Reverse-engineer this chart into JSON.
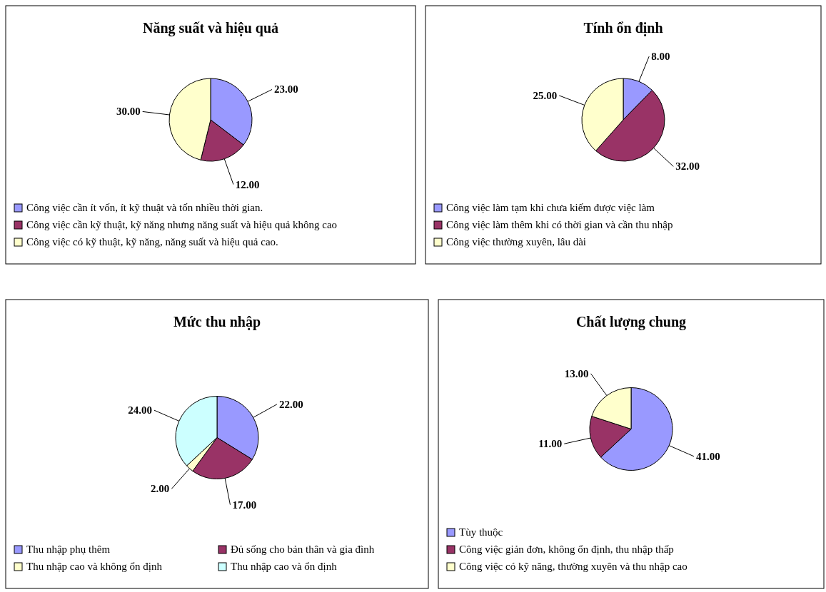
{
  "chart_data": [
    {
      "type": "pie",
      "title": "Năng suất và hiệu quả",
      "categories": [
        "Công việc cần ít vốn, ít kỹ thuật và tốn nhiều thời gian.",
        "Công việc cần kỹ thuật, kỹ năng nhưng năng suất và hiệu quả không cao",
        "Công việc có kỹ thuật, kỹ năng, năng suất và hiệu quả cao."
      ],
      "values": [
        23,
        12,
        30
      ],
      "value_labels": [
        "23.00",
        "12.00",
        "30.00"
      ],
      "colors": [
        "#9999ff",
        "#993366",
        "#ffffcc"
      ],
      "legend": "bottom"
    },
    {
      "type": "pie",
      "title": "Tính ổn định",
      "categories": [
        "Công việc làm tạm khi chưa kiếm được việc làm",
        "Công việc làm thêm khi có thời gian và cần thu nhập",
        "Công việc thường xuyên, lâu dài"
      ],
      "values": [
        8,
        32,
        25
      ],
      "value_labels": [
        "8.00",
        "32.00",
        "25.00"
      ],
      "colors": [
        "#9999ff",
        "#993366",
        "#ffffcc"
      ],
      "legend": "bottom"
    },
    {
      "type": "pie",
      "title": "Mức thu nhập",
      "categories": [
        "Thu nhập phụ thêm",
        "Đủ sống cho bản thân và gia đình",
        "Thu nhập cao và không ổn định",
        "Thu nhập cao và ổn định"
      ],
      "values": [
        22,
        17,
        2,
        24
      ],
      "value_labels": [
        "22.00",
        "17.00",
        "2.00",
        "24.00"
      ],
      "colors": [
        "#9999ff",
        "#993366",
        "#ffffcc",
        "#ccffff"
      ],
      "legend": "bottom"
    },
    {
      "type": "pie",
      "title": "Chất lượng chung",
      "categories": [
        "Tùy thuộc",
        "Công việc giản đơn, không ổn định, thu nhập thấp",
        "Công việc có kỹ năng, thường xuyên và thu nhập cao"
      ],
      "values": [
        41,
        11,
        13
      ],
      "value_labels": [
        "41.00",
        "11.00",
        "13.00"
      ],
      "colors": [
        "#9999ff",
        "#993366",
        "#ffffcc"
      ],
      "legend": "bottom"
    }
  ]
}
